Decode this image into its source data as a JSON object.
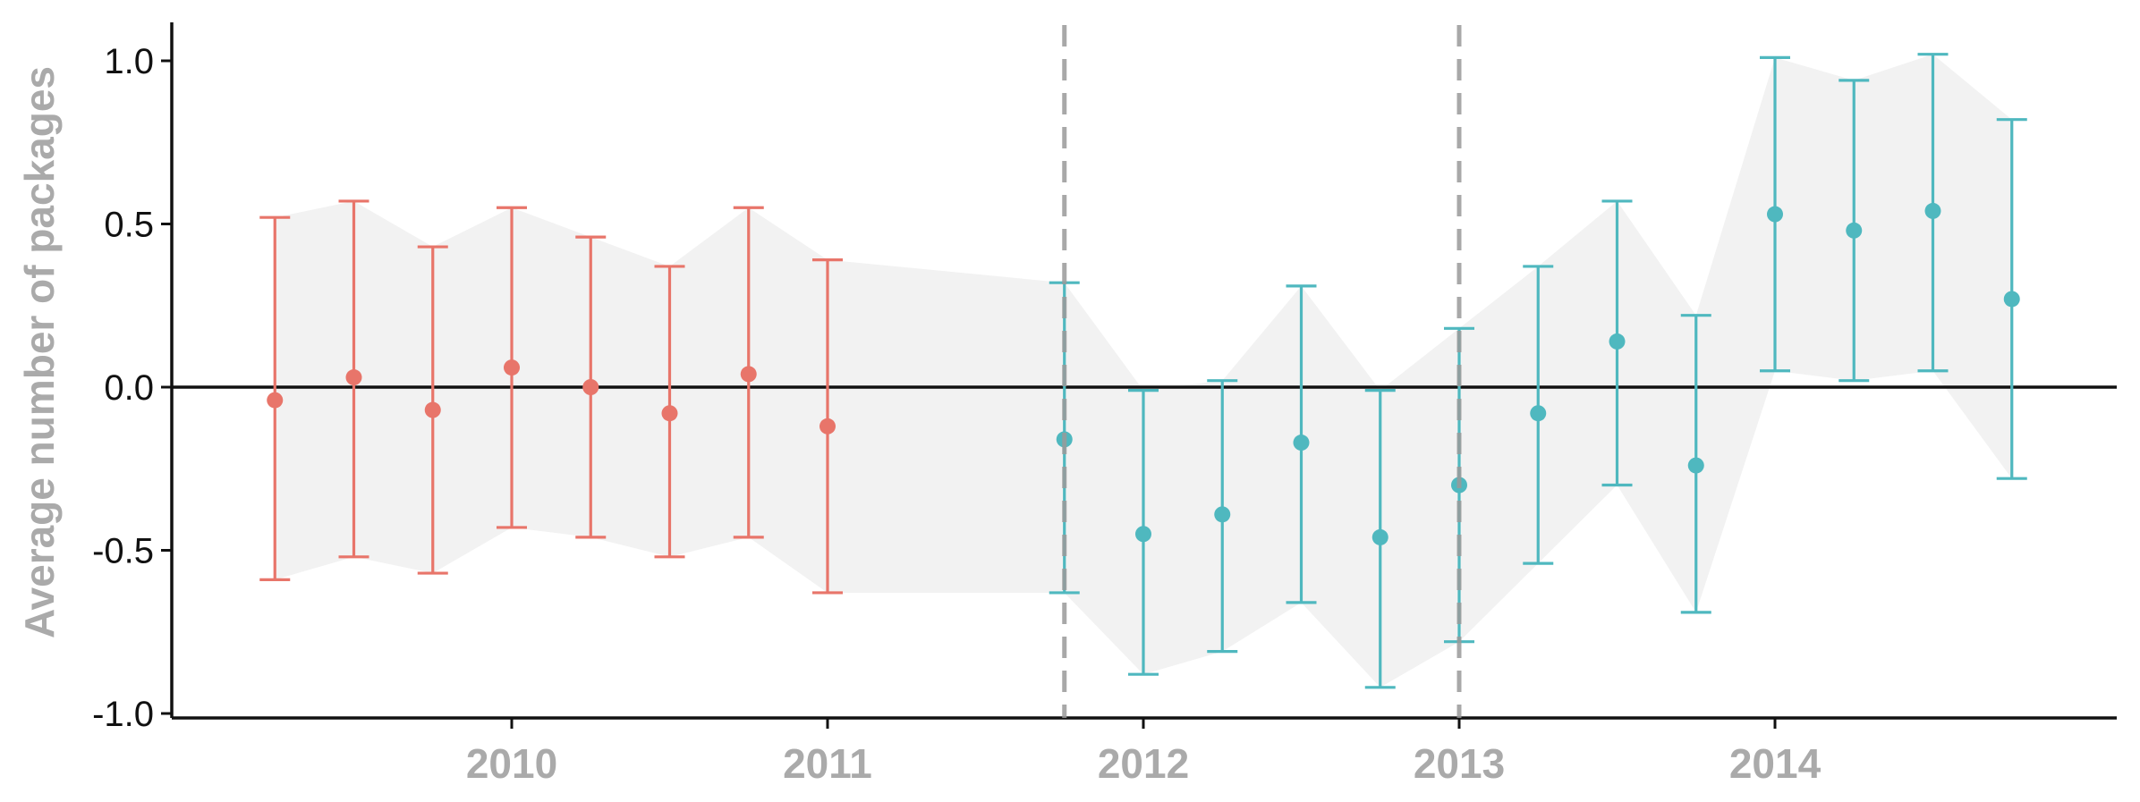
{
  "chart_data": {
    "type": "scatter",
    "title": "",
    "xlabel": "",
    "ylabel": "Average number of packages",
    "xlim": [
      2009.08,
      2015.08
    ],
    "ylim": [
      -1.0,
      1.1
    ],
    "yticks": [
      1.0,
      0.5,
      0.0,
      -0.5,
      -1.0
    ],
    "ytick_labels": [
      "1.0",
      "0.5",
      "0.0",
      "-0.5",
      "-1.0"
    ],
    "xticks": [
      2010,
      2011,
      2012,
      2013,
      2014
    ],
    "xtick_labels": [
      "2010",
      "2011",
      "2012",
      "2013",
      "2014"
    ],
    "reference_lines": {
      "horizontal": [
        0.0
      ],
      "vertical_dashed": [
        2011.75,
        2013.0
      ]
    },
    "grid": false,
    "legend": "none",
    "colors": {
      "before": "#e8756a",
      "after": "#4fb8bf",
      "band": "#f2f2f2",
      "reference": "#999999",
      "axis": "#111111"
    },
    "series": [
      {
        "color": "#e8756a",
        "points": [
          {
            "x": 2009.25,
            "y": -0.04,
            "low": -0.59,
            "high": 0.52
          },
          {
            "x": 2009.5,
            "y": 0.03,
            "low": -0.52,
            "high": 0.57
          },
          {
            "x": 2009.75,
            "y": -0.07,
            "low": -0.57,
            "high": 0.43
          },
          {
            "x": 2010.0,
            "y": 0.06,
            "low": -0.43,
            "high": 0.55
          },
          {
            "x": 2010.25,
            "y": 0.0,
            "low": -0.46,
            "high": 0.46
          },
          {
            "x": 2010.5,
            "y": -0.08,
            "low": -0.52,
            "high": 0.37
          },
          {
            "x": 2010.75,
            "y": 0.04,
            "low": -0.46,
            "high": 0.55
          },
          {
            "x": 2011.0,
            "y": -0.12,
            "low": -0.63,
            "high": 0.39
          }
        ]
      },
      {
        "color": "#4fb8bf",
        "points": [
          {
            "x": 2011.75,
            "y": -0.16,
            "low": -0.63,
            "high": 0.32
          },
          {
            "x": 2012.0,
            "y": -0.45,
            "low": -0.88,
            "high": -0.01
          },
          {
            "x": 2012.25,
            "y": -0.39,
            "low": -0.81,
            "high": 0.02
          },
          {
            "x": 2012.5,
            "y": -0.17,
            "low": -0.66,
            "high": 0.31
          },
          {
            "x": 2012.75,
            "y": -0.46,
            "low": -0.92,
            "high": -0.01
          },
          {
            "x": 2013.0,
            "y": -0.3,
            "low": -0.78,
            "high": 0.18
          },
          {
            "x": 2013.25,
            "y": -0.08,
            "low": -0.54,
            "high": 0.37
          },
          {
            "x": 2013.5,
            "y": 0.14,
            "low": -0.3,
            "high": 0.57
          },
          {
            "x": 2013.75,
            "y": -0.24,
            "low": -0.69,
            "high": 0.22
          },
          {
            "x": 2014.0,
            "y": 0.53,
            "low": 0.05,
            "high": 1.01
          },
          {
            "x": 2014.25,
            "y": 0.48,
            "low": 0.02,
            "high": 0.94
          },
          {
            "x": 2014.5,
            "y": 0.54,
            "low": 0.05,
            "high": 1.02
          },
          {
            "x": 2014.75,
            "y": 0.27,
            "low": -0.28,
            "high": 0.82
          }
        ]
      }
    ]
  }
}
